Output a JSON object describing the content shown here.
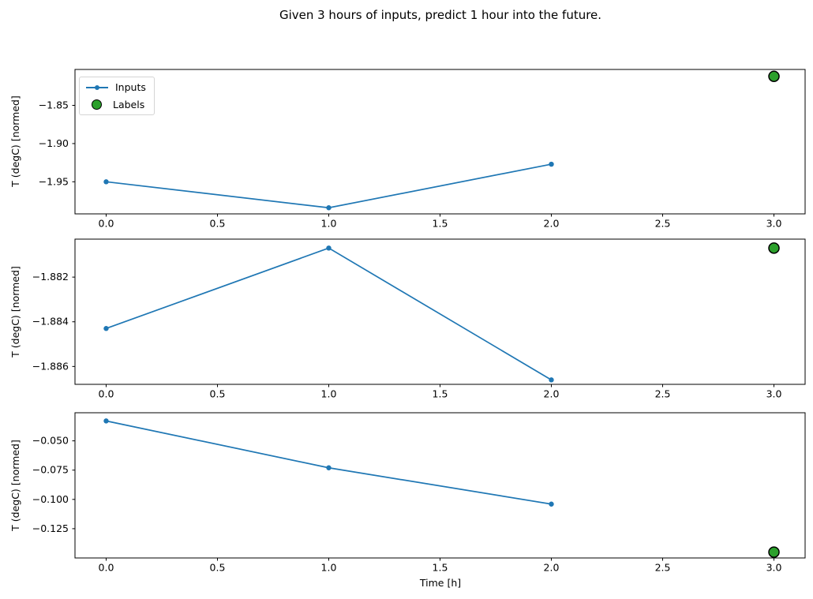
{
  "title": "Given 3 hours of inputs, predict 1 hour into the future.",
  "xlabel": "Time [h]",
  "legend": {
    "entries": [
      {
        "label": "Inputs",
        "marker": "line-with-dot",
        "color": "#1f77b4"
      },
      {
        "label": "Labels",
        "marker": "circle",
        "color": "#2ca02c"
      }
    ]
  },
  "colors": {
    "inputs_line": "#1f77b4",
    "labels_fill": "#2ca02c",
    "labels_edge": "#000000",
    "spine": "#000000",
    "text": "#000000"
  },
  "chart_data": [
    {
      "type": "line",
      "ylabel": "T (degC) [normed]",
      "xlim": [
        -0.14,
        3.14
      ],
      "ylim": [
        -1.992,
        -1.803
      ],
      "xticks": [
        0.0,
        0.5,
        1.0,
        1.5,
        2.0,
        2.5,
        3.0
      ],
      "xtick_labels": [
        "0.0",
        "0.5",
        "1.0",
        "1.5",
        "2.0",
        "2.5",
        "3.0"
      ],
      "yticks": [
        -1.85,
        -1.9,
        -1.95
      ],
      "ytick_labels": [
        "−1.85",
        "−1.90",
        "−1.95"
      ],
      "series": [
        {
          "name": "Inputs",
          "x": [
            0,
            1,
            2
          ],
          "y": [
            -1.95,
            -1.984,
            -1.927
          ]
        },
        {
          "name": "Labels",
          "x": [
            3
          ],
          "y": [
            -1.812
          ]
        }
      ],
      "has_legend": true
    },
    {
      "type": "line",
      "ylabel": "T (degC) [normed]",
      "xlim": [
        -0.14,
        3.14
      ],
      "ylim": [
        -1.8868,
        -1.8803
      ],
      "xticks": [
        0.0,
        0.5,
        1.0,
        1.5,
        2.0,
        2.5,
        3.0
      ],
      "xtick_labels": [
        "0.0",
        "0.5",
        "1.0",
        "1.5",
        "2.0",
        "2.5",
        "3.0"
      ],
      "yticks": [
        -1.882,
        -1.884,
        -1.886
      ],
      "ytick_labels": [
        "−1.882",
        "−1.884",
        "−1.886"
      ],
      "series": [
        {
          "name": "Inputs",
          "x": [
            0,
            1,
            2
          ],
          "y": [
            -1.8843,
            -1.8807,
            -1.8866
          ]
        },
        {
          "name": "Labels",
          "x": [
            3
          ],
          "y": [
            -1.8807
          ]
        }
      ],
      "has_legend": false
    },
    {
      "type": "line",
      "ylabel": "T (degC) [normed]",
      "xlim": [
        -0.14,
        3.14
      ],
      "ylim": [
        -0.15,
        -0.026
      ],
      "xticks": [
        0.0,
        0.5,
        1.0,
        1.5,
        2.0,
        2.5,
        3.0
      ],
      "xtick_labels": [
        "0.0",
        "0.5",
        "1.0",
        "1.5",
        "2.0",
        "2.5",
        "3.0"
      ],
      "yticks": [
        -0.05,
        -0.075,
        -0.1,
        -0.125
      ],
      "ytick_labels": [
        "−0.050",
        "−0.075",
        "−0.100",
        "−0.125"
      ],
      "series": [
        {
          "name": "Inputs",
          "x": [
            0,
            1,
            2
          ],
          "y": [
            -0.033,
            -0.073,
            -0.104
          ]
        },
        {
          "name": "Labels",
          "x": [
            3
          ],
          "y": [
            -0.145
          ]
        }
      ],
      "has_legend": false
    }
  ]
}
